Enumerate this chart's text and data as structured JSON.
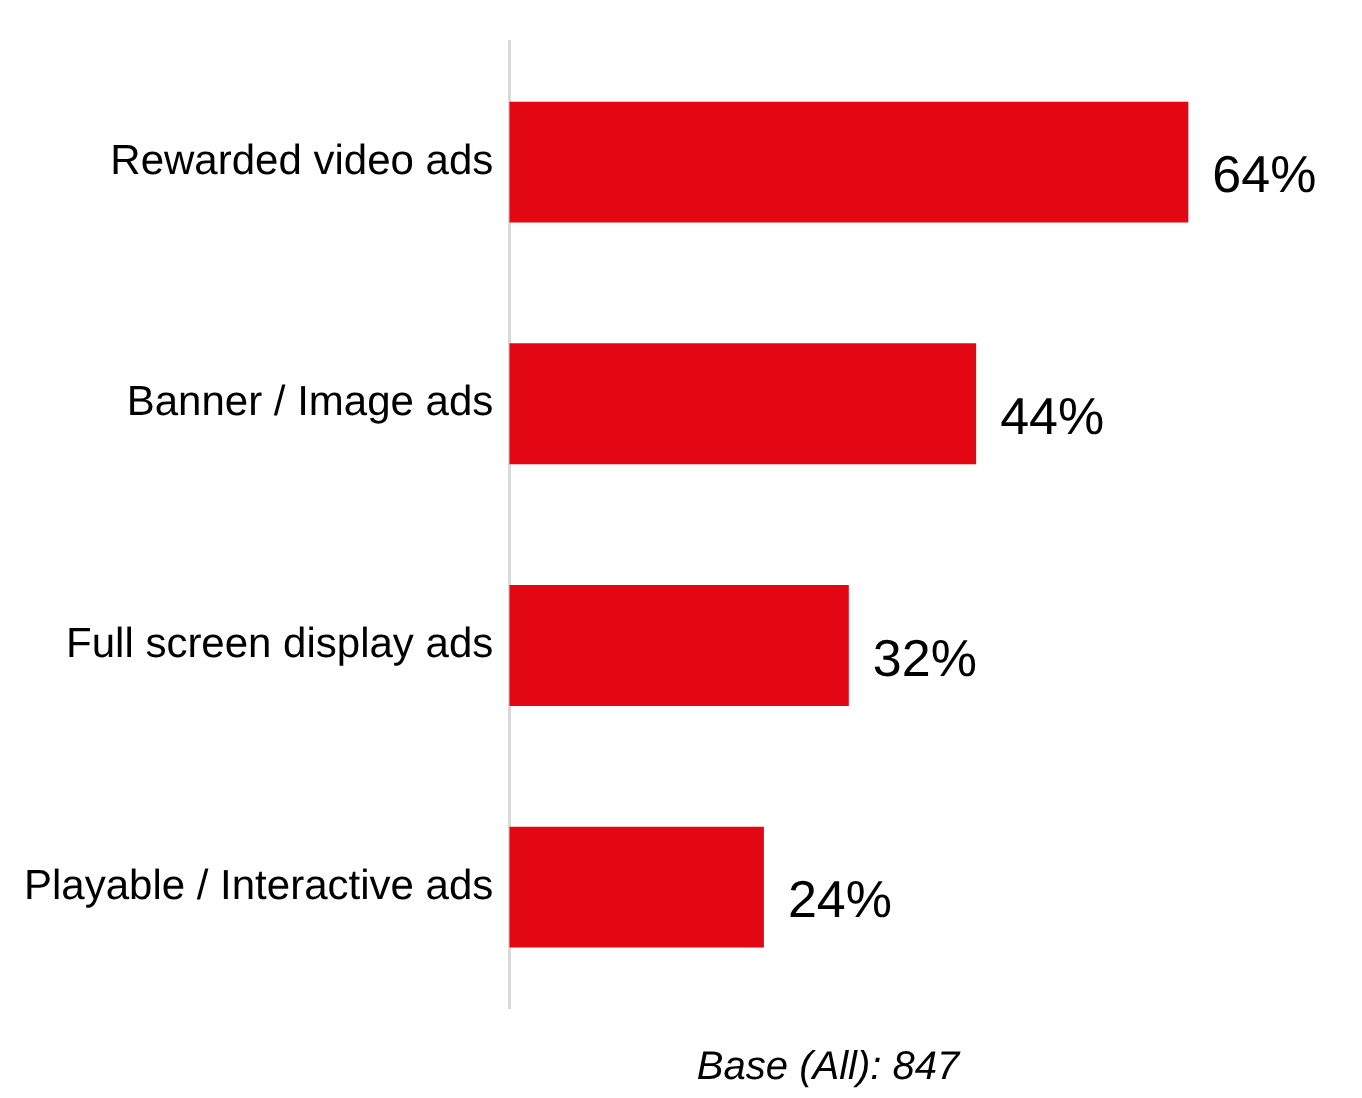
{
  "chart_data": {
    "type": "bar",
    "orientation": "horizontal",
    "categories": [
      "Rewarded video ads",
      "Banner / Image ads",
      "Full screen display ads",
      "Playable / Interactive ads"
    ],
    "values": [
      64,
      44,
      32,
      24
    ],
    "color": "#e30613",
    "value_labels": [
      "64%",
      "44%",
      "32%",
      "24%"
    ],
    "legend": false,
    "annotations": [
      "Base (All): 847"
    ]
  }
}
